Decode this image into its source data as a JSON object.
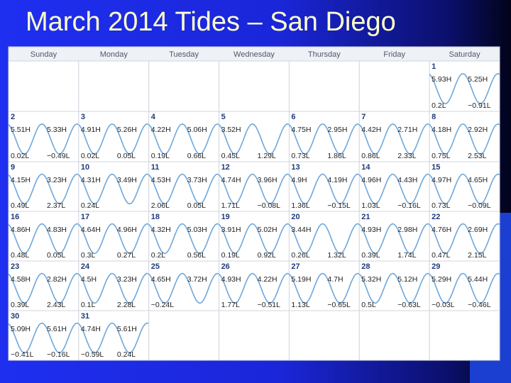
{
  "title": "March 2014 Tides – San Diego",
  "weekdays": [
    "Sunday",
    "Monday",
    "Tuesday",
    "Wednesday",
    "Thursday",
    "Friday",
    "Saturday"
  ],
  "days": [
    {
      "day": "1",
      "highs": [
        "5.93H",
        "5.25H"
      ],
      "lows": [
        "0.2L",
        "−0.91L"
      ]
    },
    {
      "day": "2",
      "highs": [
        "5.51H",
        "5.33H"
      ],
      "lows": [
        "0.02L",
        "−0.49L"
      ]
    },
    {
      "day": "3",
      "highs": [
        "4.91H",
        "5.26H"
      ],
      "lows": [
        "0.02L",
        "0.05L"
      ]
    },
    {
      "day": "4",
      "highs": [
        "4.22H",
        "5.06H"
      ],
      "lows": [
        "0.19L",
        "0.66L"
      ]
    },
    {
      "day": "5",
      "highs": [
        "3.52H"
      ],
      "lows": [
        "0.45L",
        "1.29L"
      ]
    },
    {
      "day": "6",
      "highs": [
        "4.75H",
        "2.95H"
      ],
      "lows": [
        "0.73L",
        "1.86L"
      ]
    },
    {
      "day": "7",
      "highs": [
        "4.42H",
        "2.71H"
      ],
      "lows": [
        "0.86L",
        "2.33L"
      ]
    },
    {
      "day": "8",
      "highs": [
        "4.18H",
        "2.92H"
      ],
      "lows": [
        "0.75L",
        "2.53L"
      ]
    },
    {
      "day": "9",
      "highs": [
        "4.15H",
        "3.23H"
      ],
      "lows": [
        "0.49L",
        "2.37L"
      ]
    },
    {
      "day": "10",
      "highs": [
        "4.31H",
        "3.49H"
      ],
      "lows": [
        "0.24L"
      ]
    },
    {
      "day": "11",
      "highs": [
        "4.53H",
        "3.73H"
      ],
      "lows": [
        "2.06L",
        "0.05L"
      ]
    },
    {
      "day": "12",
      "highs": [
        "4.74H",
        "3.96H"
      ],
      "lows": [
        "1.71L",
        "−0.08L"
      ]
    },
    {
      "day": "13",
      "highs": [
        "4.9H",
        "4.19H"
      ],
      "lows": [
        "1.36L",
        "−0.15L"
      ]
    },
    {
      "day": "14",
      "highs": [
        "4.96H",
        "4.43H"
      ],
      "lows": [
        "1.03L",
        "−0.16L"
      ]
    },
    {
      "day": "15",
      "highs": [
        "4.97H",
        "4.65H"
      ],
      "lows": [
        "0.73L",
        "−0.09L"
      ]
    },
    {
      "day": "16",
      "highs": [
        "4.86H",
        "4.83H"
      ],
      "lows": [
        "0.48L",
        "0.05L"
      ]
    },
    {
      "day": "17",
      "highs": [
        "4.64H",
        "4.96H"
      ],
      "lows": [
        "0.3L",
        "0.27L"
      ]
    },
    {
      "day": "18",
      "highs": [
        "4.32H",
        "5.03H"
      ],
      "lows": [
        "0.2L",
        "0.56L"
      ]
    },
    {
      "day": "19",
      "highs": [
        "3.91H",
        "5.02H"
      ],
      "lows": [
        "0.19L",
        "0.92L"
      ]
    },
    {
      "day": "20",
      "highs": [
        "3.44H"
      ],
      "lows": [
        "0.26L",
        "1.32L"
      ]
    },
    {
      "day": "21",
      "highs": [
        "4.93H",
        "2.98H"
      ],
      "lows": [
        "0.39L",
        "1.74L"
      ]
    },
    {
      "day": "22",
      "highs": [
        "4.76H",
        "2.69H"
      ],
      "lows": [
        "0.47L",
        "2.15L"
      ]
    },
    {
      "day": "23",
      "highs": [
        "4.58H",
        "2.82H"
      ],
      "lows": [
        "0.39L",
        "2.43L"
      ]
    },
    {
      "day": "24",
      "highs": [
        "4.5H",
        "3.23H"
      ],
      "lows": [
        "0.1L",
        "2.28L"
      ]
    },
    {
      "day": "25",
      "highs": [
        "4.65H",
        "3.72H"
      ],
      "lows": [
        "−0.24L"
      ]
    },
    {
      "day": "26",
      "highs": [
        "4.93H",
        "4.22H"
      ],
      "lows": [
        "1.77L",
        "−0.51L"
      ]
    },
    {
      "day": "27",
      "highs": [
        "5.19H",
        "4.7H"
      ],
      "lows": [
        "1.13L",
        "−0.65L"
      ]
    },
    {
      "day": "28",
      "highs": [
        "5.32H",
        "5.12H"
      ],
      "lows": [
        "0.5L",
        "−0.63L"
      ]
    },
    {
      "day": "29",
      "highs": [
        "5.29H",
        "5.44H"
      ],
      "lows": [
        "−0.03L",
        "−0.46L"
      ]
    },
    {
      "day": "30",
      "highs": [
        "5.09H",
        "5.61H"
      ],
      "lows": [
        "−0.41L",
        "−0.16L"
      ]
    },
    {
      "day": "31",
      "highs": [
        "4.74H",
        "5.61H"
      ],
      "lows": [
        "−0.59L",
        "0.24L"
      ]
    }
  ]
}
